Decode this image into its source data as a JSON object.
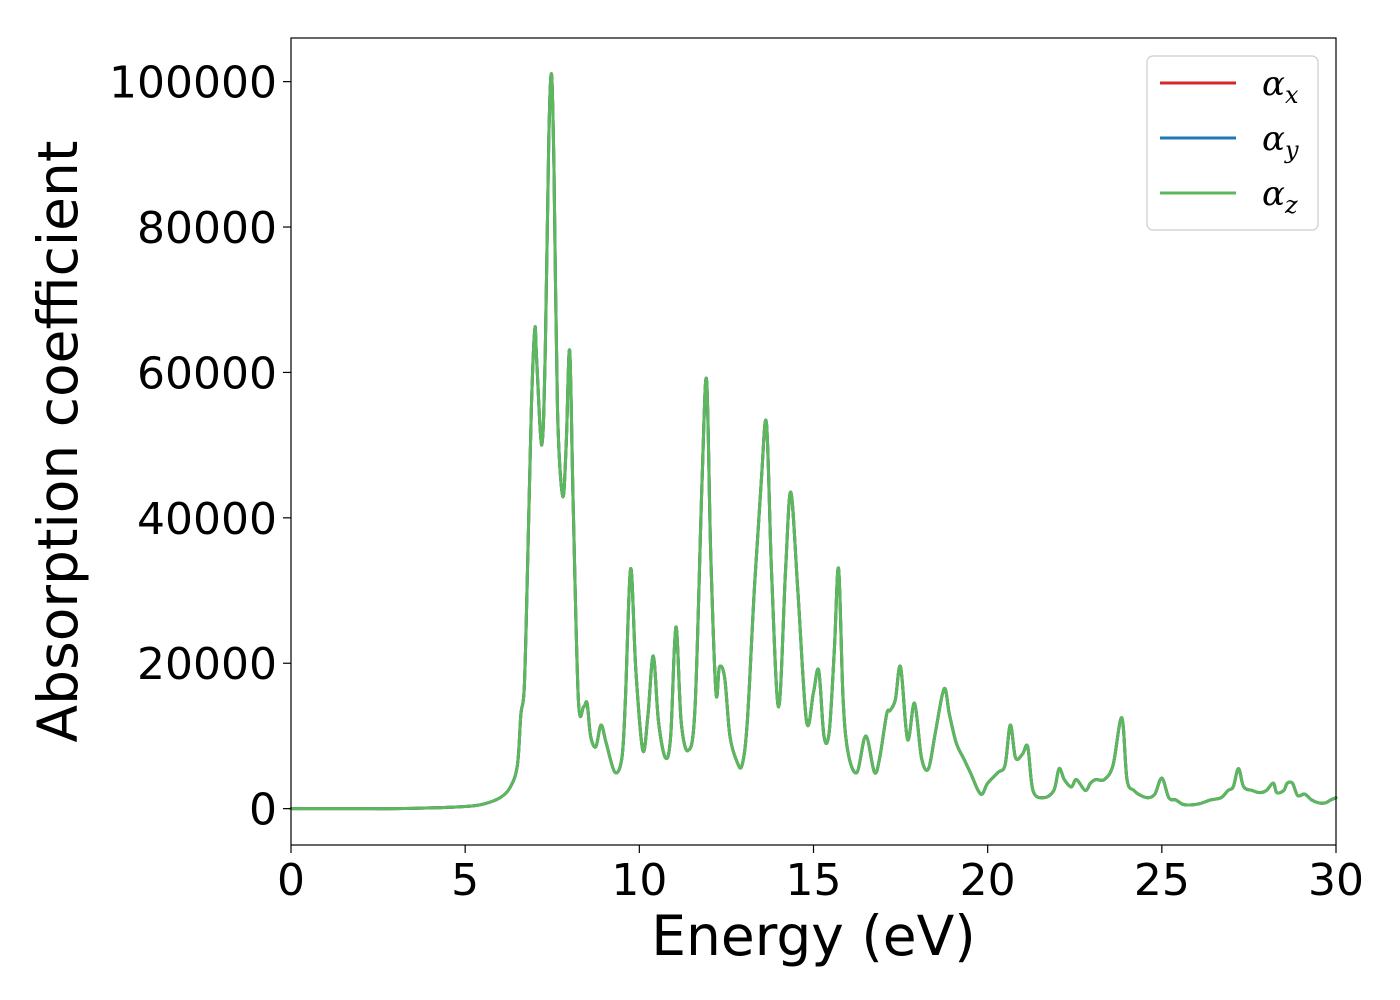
{
  "chart_data": {
    "type": "line",
    "xlabel": "Energy (eV)",
    "ylabel": "Absorption coefficient",
    "xlim": [
      0,
      30
    ],
    "ylim": [
      -5000,
      106000
    ],
    "x_ticks": [
      0,
      5,
      10,
      15,
      20,
      25,
      30
    ],
    "y_ticks": [
      0,
      20000,
      40000,
      60000,
      80000,
      100000
    ],
    "x_tick_labels": [
      "0",
      "5",
      "10",
      "15",
      "20",
      "25",
      "30"
    ],
    "y_tick_labels": [
      "0",
      "20000",
      "40000",
      "60000",
      "80000",
      "100000"
    ],
    "grid": false,
    "legend_position": "top-right",
    "x": [
      0,
      1,
      2,
      3,
      4,
      5,
      5.5,
      6.0,
      6.3,
      6.5,
      6.6,
      6.7,
      6.8,
      6.9,
      7.0,
      7.05,
      7.2,
      7.3,
      7.4,
      7.48,
      7.55,
      7.65,
      7.8,
      7.9,
      8.0,
      8.1,
      8.25,
      8.4,
      8.5,
      8.6,
      8.75,
      8.9,
      9.05,
      9.3,
      9.5,
      9.6,
      9.75,
      9.9,
      10.1,
      10.25,
      10.4,
      10.55,
      10.75,
      10.9,
      11.05,
      11.2,
      11.4,
      11.6,
      11.8,
      11.93,
      12.05,
      12.2,
      12.3,
      12.45,
      12.6,
      12.8,
      12.95,
      13.1,
      13.3,
      13.5,
      13.65,
      13.8,
      14.0,
      14.2,
      14.35,
      14.55,
      14.8,
      15.0,
      15.15,
      15.3,
      15.45,
      15.6,
      15.72,
      15.85,
      16.0,
      16.25,
      16.5,
      16.75,
      16.9,
      17.1,
      17.2,
      17.35,
      17.5,
      17.7,
      17.9,
      18.1,
      18.3,
      18.5,
      18.75,
      18.9,
      19.1,
      19.3,
      19.5,
      19.8,
      20.0,
      20.3,
      20.5,
      20.65,
      20.8,
      21.0,
      21.15,
      21.3,
      21.6,
      21.9,
      22.05,
      22.2,
      22.4,
      22.55,
      22.8,
      22.95,
      23.1,
      23.35,
      23.6,
      23.85,
      24.0,
      24.2,
      24.4,
      24.6,
      24.8,
      25.0,
      25.2,
      25.4,
      25.6,
      25.8,
      26.1,
      26.4,
      26.7,
      26.9,
      27.05,
      27.2,
      27.35,
      27.6,
      27.8,
      28.0,
      28.2,
      28.3,
      28.5,
      28.6,
      28.75,
      28.9,
      29.1,
      29.3,
      29.5,
      29.7,
      29.85,
      30.0
    ],
    "series": [
      {
        "name": "α_x",
        "label_main": "α",
        "label_sub": "x",
        "color": "#d62728",
        "values": [
          0,
          0,
          0,
          0,
          100,
          300,
          600,
          1500,
          3000,
          6000,
          13000,
          17000,
          35000,
          55000,
          66000,
          62000,
          50000,
          63000,
          92000,
          101000,
          88000,
          55000,
          43000,
          50000,
          63000,
          42000,
          15000,
          14000,
          14500,
          10000,
          8500,
          11500,
          9000,
          5000,
          7000,
          15000,
          33000,
          19000,
          8000,
          13000,
          21000,
          12000,
          7000,
          10000,
          25000,
          12000,
          8000,
          14000,
          45000,
          59000,
          35000,
          16000,
          19500,
          18000,
          10000,
          6500,
          6000,
          12000,
          30000,
          45000,
          53000,
          32000,
          14000,
          33000,
          43500,
          30000,
          12000,
          16000,
          19000,
          10000,
          10500,
          22000,
          33000,
          15000,
          7500,
          5000,
          10000,
          5000,
          7000,
          13000,
          13500,
          15000,
          19500,
          9500,
          14500,
          7000,
          5500,
          10500,
          16500,
          13000,
          9000,
          7000,
          5000,
          2000,
          3500,
          5000,
          6000,
          11500,
          7000,
          7500,
          8500,
          2500,
          1500,
          2500,
          5500,
          4000,
          3000,
          4000,
          2500,
          3500,
          4000,
          4000,
          6000,
          12500,
          4000,
          2500,
          1800,
          1500,
          2000,
          4200,
          1500,
          1200,
          600,
          500,
          700,
          1200,
          1500,
          2500,
          3000,
          5500,
          3000,
          2500,
          2200,
          2500,
          3500,
          2200,
          2500,
          3500,
          3500,
          1800,
          2000,
          1200,
          800,
          800,
          1200,
          1500
        ]
      },
      {
        "name": "α_y",
        "label_main": "α",
        "label_sub": "y",
        "color": "#1f77b4",
        "values": [
          0,
          0,
          0,
          0,
          100,
          300,
          600,
          1500,
          3000,
          6000,
          13000,
          17000,
          35000,
          55000,
          66000,
          62000,
          50000,
          63000,
          92000,
          101000,
          88000,
          55000,
          43000,
          50000,
          63000,
          42000,
          15000,
          14000,
          14500,
          10000,
          8500,
          11500,
          9000,
          5000,
          7000,
          15000,
          33000,
          19000,
          8000,
          13000,
          21000,
          12000,
          7000,
          10000,
          25000,
          12000,
          8000,
          14000,
          45000,
          59000,
          35000,
          16000,
          19500,
          18000,
          10000,
          6500,
          6000,
          12000,
          30000,
          45000,
          53000,
          32000,
          14000,
          33000,
          43500,
          30000,
          12000,
          16000,
          19000,
          10000,
          10500,
          22000,
          33000,
          15000,
          7500,
          5000,
          10000,
          5000,
          7000,
          13000,
          13500,
          15000,
          19500,
          9500,
          14500,
          7000,
          5500,
          10500,
          16500,
          13000,
          9000,
          7000,
          5000,
          2000,
          3500,
          5000,
          6000,
          11500,
          7000,
          7500,
          8500,
          2500,
          1500,
          2500,
          5500,
          4000,
          3000,
          4000,
          2500,
          3500,
          4000,
          4000,
          6000,
          12500,
          4000,
          2500,
          1800,
          1500,
          2000,
          4200,
          1500,
          1200,
          600,
          500,
          700,
          1200,
          1500,
          2500,
          3000,
          5500,
          3000,
          2500,
          2200,
          2500,
          3500,
          2200,
          2500,
          3500,
          3500,
          1800,
          2000,
          1200,
          800,
          800,
          1200,
          1500
        ]
      },
      {
        "name": "α_z",
        "label_main": "α",
        "label_sub": "z",
        "color": "#5cb85c",
        "values": [
          0,
          0,
          0,
          0,
          100,
          300,
          600,
          1500,
          3000,
          6000,
          13000,
          17000,
          35000,
          55000,
          66000,
          62000,
          50000,
          63000,
          92000,
          101000,
          88000,
          55000,
          43000,
          50000,
          63000,
          42000,
          15000,
          14000,
          14500,
          10000,
          8500,
          11500,
          9000,
          5000,
          7000,
          15000,
          33000,
          19000,
          8000,
          13000,
          21000,
          12000,
          7000,
          10000,
          25000,
          12000,
          8000,
          14000,
          45000,
          59000,
          35000,
          16000,
          19500,
          18000,
          10000,
          6500,
          6000,
          12000,
          30000,
          45000,
          53000,
          32000,
          14000,
          33000,
          43500,
          30000,
          12000,
          16000,
          19000,
          10000,
          10500,
          22000,
          33000,
          15000,
          7500,
          5000,
          10000,
          5000,
          7000,
          13000,
          13500,
          15000,
          19500,
          9500,
          14500,
          7000,
          5500,
          10500,
          16500,
          13000,
          9000,
          7000,
          5000,
          2000,
          3500,
          5000,
          6000,
          11500,
          7000,
          7500,
          8500,
          2500,
          1500,
          2500,
          5500,
          4000,
          3000,
          4000,
          2500,
          3500,
          4000,
          4000,
          6000,
          12500,
          4000,
          2500,
          1800,
          1500,
          2000,
          4200,
          1500,
          1200,
          600,
          500,
          700,
          1200,
          1500,
          2500,
          3000,
          5500,
          3000,
          2500,
          2200,
          2500,
          3500,
          2200,
          2500,
          3500,
          3500,
          1800,
          2000,
          1200,
          800,
          800,
          1200,
          1500
        ]
      }
    ]
  }
}
